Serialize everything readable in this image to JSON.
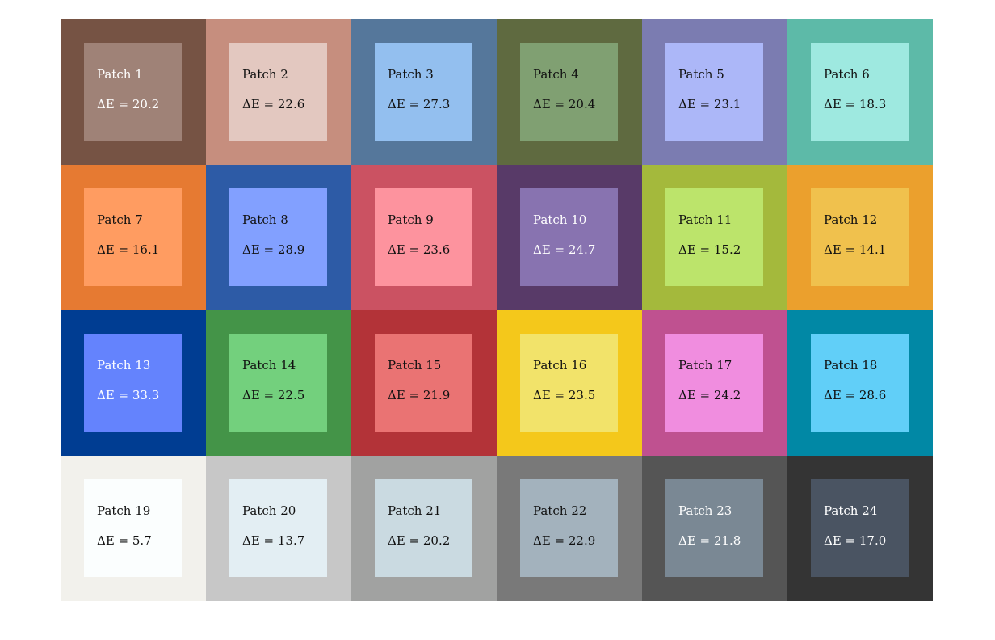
{
  "chart_data": {
    "type": "heatmap",
    "title": "",
    "xlabel": "",
    "ylabel": "",
    "rows": 4,
    "columns": 6,
    "patches": [
      {
        "label": "Patch 1",
        "delta_e_text": "ΔE = 20.2",
        "delta_e": 20.2,
        "reference_color": "#765344",
        "measured_color": "#9f8277",
        "text_color": "#ffffff"
      },
      {
        "label": "Patch 2",
        "delta_e_text": "ΔE = 22.6",
        "delta_e": 22.6,
        "reference_color": "#c68e7e",
        "measured_color": "#e3c8c0",
        "text_color": "#111111"
      },
      {
        "label": "Patch 3",
        "delta_e_text": "ΔE = 27.3",
        "delta_e": 27.3,
        "reference_color": "#55779b",
        "measured_color": "#93bfef",
        "text_color": "#111111"
      },
      {
        "label": "Patch 4",
        "delta_e_text": "ΔE = 20.4",
        "delta_e": 20.4,
        "reference_color": "#5f6a40",
        "measured_color": "#80a072",
        "text_color": "#111111"
      },
      {
        "label": "Patch 5",
        "delta_e_text": "ΔE = 23.1",
        "delta_e": 23.1,
        "reference_color": "#7b7cb1",
        "measured_color": "#acb7f8",
        "text_color": "#111111"
      },
      {
        "label": "Patch 6",
        "delta_e_text": "ΔE = 18.3",
        "delta_e": 18.3,
        "reference_color": "#5dbaa8",
        "measured_color": "#9ee9e0",
        "text_color": "#111111"
      },
      {
        "label": "Patch 7",
        "delta_e_text": "ΔE = 16.1",
        "delta_e": 16.1,
        "reference_color": "#e67a32",
        "measured_color": "#ff9c61",
        "text_color": "#111111"
      },
      {
        "label": "Patch 8",
        "delta_e_text": "ΔE = 28.9",
        "delta_e": 28.9,
        "reference_color": "#2d5ba6",
        "measured_color": "#82a0ff",
        "text_color": "#111111"
      },
      {
        "label": "Patch 9",
        "delta_e_text": "ΔE = 23.6",
        "delta_e": 23.6,
        "reference_color": "#cb5262",
        "measured_color": "#fd939e",
        "text_color": "#111111"
      },
      {
        "label": "Patch 10",
        "delta_e_text": "ΔE = 24.7",
        "delta_e": 24.7,
        "reference_color": "#583a68",
        "measured_color": "#8873b0",
        "text_color": "#ffffff"
      },
      {
        "label": "Patch 11",
        "delta_e_text": "ΔE = 15.2",
        "delta_e": 15.2,
        "reference_color": "#a4b93c",
        "measured_color": "#bce46b",
        "text_color": "#111111"
      },
      {
        "label": "Patch 12",
        "delta_e_text": "ΔE = 14.1",
        "delta_e": 14.1,
        "reference_color": "#eba02d",
        "measured_color": "#f0c14d",
        "text_color": "#111111"
      },
      {
        "label": "Patch 13",
        "delta_e_text": "ΔE = 33.3",
        "delta_e": 33.3,
        "reference_color": "#003d92",
        "measured_color": "#6483fd",
        "text_color": "#ffffff"
      },
      {
        "label": "Patch 14",
        "delta_e_text": "ΔE = 22.5",
        "delta_e": 22.5,
        "reference_color": "#449448",
        "measured_color": "#73d07d",
        "text_color": "#111111"
      },
      {
        "label": "Patch 15",
        "delta_e_text": "ΔE = 21.9",
        "delta_e": 21.9,
        "reference_color": "#b33338",
        "measured_color": "#ea7373",
        "text_color": "#111111"
      },
      {
        "label": "Patch 16",
        "delta_e_text": "ΔE = 23.5",
        "delta_e": 23.5,
        "reference_color": "#f4c81b",
        "measured_color": "#f2e36a",
        "text_color": "#111111"
      },
      {
        "label": "Patch 17",
        "delta_e_text": "ΔE = 24.2",
        "delta_e": 24.2,
        "reference_color": "#bf5190",
        "measured_color": "#f08ddf",
        "text_color": "#111111"
      },
      {
        "label": "Patch 18",
        "delta_e_text": "ΔE = 28.6",
        "delta_e": 28.6,
        "reference_color": "#0188a5",
        "measured_color": "#61cff8",
        "text_color": "#111111"
      },
      {
        "label": "Patch 19",
        "delta_e_text": "ΔE = 5.7",
        "delta_e": 5.7,
        "reference_color": "#f2f1ec",
        "measured_color": "#fbfefe",
        "text_color": "#111111"
      },
      {
        "label": "Patch 20",
        "delta_e_text": "ΔE = 13.7",
        "delta_e": 13.7,
        "reference_color": "#c7c7c7",
        "measured_color": "#e3eef3",
        "text_color": "#111111"
      },
      {
        "label": "Patch 21",
        "delta_e_text": "ΔE = 20.2",
        "delta_e": 20.2,
        "reference_color": "#a1a2a1",
        "measured_color": "#cadae1",
        "text_color": "#111111"
      },
      {
        "label": "Patch 22",
        "delta_e_text": "ΔE = 22.9",
        "delta_e": 22.9,
        "reference_color": "#797979",
        "measured_color": "#a3b2bd",
        "text_color": "#111111"
      },
      {
        "label": "Patch 23",
        "delta_e_text": "ΔE = 21.8",
        "delta_e": 21.8,
        "reference_color": "#555555",
        "measured_color": "#7a8894",
        "text_color": "#ffffff"
      },
      {
        "label": "Patch 24",
        "delta_e_text": "ΔE = 17.0",
        "delta_e": 17.0,
        "reference_color": "#343434",
        "measured_color": "#4a5462",
        "text_color": "#ffffff"
      }
    ]
  }
}
